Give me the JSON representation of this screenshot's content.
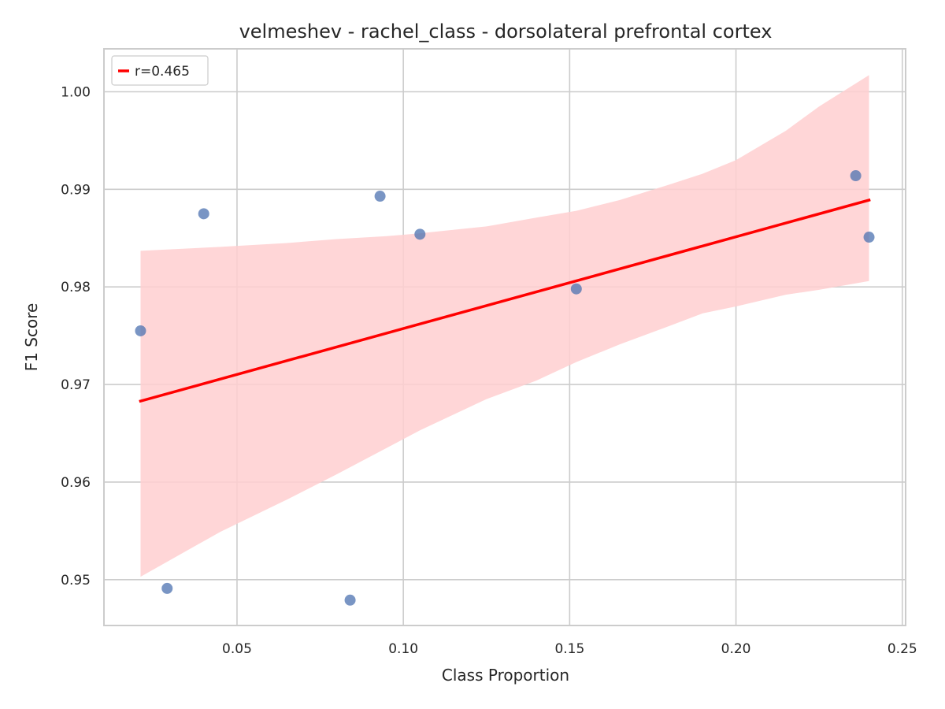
{
  "chart_data": {
    "type": "scatter",
    "title": "velmeshev - rachel_class - dorsolateral prefrontal cortex",
    "xlabel": "Class Proportion",
    "ylabel": "F1 Score",
    "xlim": [
      0.01,
      0.251
    ],
    "ylim": [
      0.9453,
      1.0044
    ],
    "xticks": [
      0.05,
      0.1,
      0.15,
      0.2,
      0.25
    ],
    "xtick_labels": [
      "0.05",
      "0.10",
      "0.15",
      "0.20",
      "0.25"
    ],
    "yticks": [
      0.95,
      0.96,
      0.97,
      0.98,
      0.99,
      1.0
    ],
    "ytick_labels": [
      "0.95",
      "0.96",
      "0.97",
      "0.98",
      "0.99",
      "1.00"
    ],
    "grid": true,
    "legend": {
      "position": "top-left",
      "entries": [
        "r=0.465"
      ]
    },
    "series": [
      {
        "kind": "points",
        "x": [
          0.021,
          0.029,
          0.04,
          0.084,
          0.093,
          0.105,
          0.152,
          0.236,
          0.24
        ],
        "y": [
          0.9755,
          0.9491,
          0.9875,
          0.9479,
          0.9893,
          0.9854,
          0.9798,
          0.9914,
          0.9851
        ]
      },
      {
        "kind": "regression",
        "name": "r=0.465",
        "x": [
          0.021,
          0.24
        ],
        "y": [
          0.9683,
          0.9889
        ]
      },
      {
        "kind": "confidence_band",
        "x": [
          0.021,
          0.045,
          0.065,
          0.08,
          0.095,
          0.105,
          0.125,
          0.14,
          0.152,
          0.165,
          0.18,
          0.19,
          0.2,
          0.215,
          0.225,
          0.24
        ],
        "upper": [
          0.9837,
          0.9841,
          0.9845,
          0.9849,
          0.9852,
          0.9855,
          0.9862,
          0.9871,
          0.9878,
          0.9889,
          0.9905,
          0.9916,
          0.993,
          0.996,
          0.9985,
          1.0017
        ],
        "lower": [
          0.9503,
          0.9549,
          0.9582,
          0.9608,
          0.9635,
          0.9653,
          0.9685,
          0.9704,
          0.9723,
          0.9741,
          0.976,
          0.9773,
          0.978,
          0.9792,
          0.9797,
          0.9806
        ]
      }
    ],
    "colors": {
      "points": "#4c72b0",
      "regression": "#ff0000",
      "band": "#ffcfd0",
      "grid": "#cccccc",
      "spine": "#cccccc",
      "text": "#262626"
    }
  }
}
